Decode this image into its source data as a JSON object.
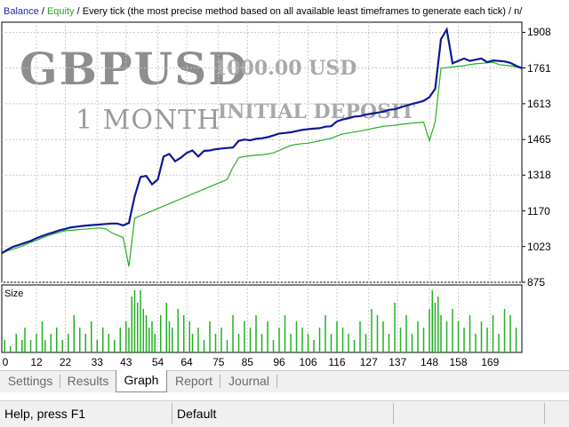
{
  "legend": {
    "balance": "Balance",
    "sep1": " / ",
    "equity": "Equity",
    "sep2": " / ",
    "description": "Every tick (the most precise method based on all available least timeframes to generate each tick)",
    "sep3": " / ",
    "trail": "n/"
  },
  "watermark": {
    "pair": "GBPUSD",
    "period": "1 MONTH",
    "amount": "1000.00 USD",
    "deposit": "INITIAL DEPOSIT"
  },
  "colors": {
    "balance": "#0a1a96",
    "equity": "#22b022",
    "volume": "#22b022",
    "grid": "#c8c8c8"
  },
  "chart_data": {
    "type": "line",
    "y_ticks": [
      "1908",
      "1761",
      "1613",
      "1465",
      "1318",
      "1170",
      "1023",
      "875"
    ],
    "x_ticks": [
      "0",
      "12",
      "22",
      "33",
      "43",
      "54",
      "64",
      "75",
      "85",
      "96",
      "106",
      "116",
      "127",
      "137",
      "148",
      "158",
      "169"
    ],
    "ylim": [
      875,
      1950
    ],
    "xlim": [
      0,
      180
    ],
    "grid": true,
    "series": [
      {
        "name": "Balance",
        "x": [
          0,
          2,
          4,
          6,
          8,
          10,
          12,
          14,
          16,
          18,
          20,
          22,
          24,
          26,
          28,
          30,
          32,
          34,
          36,
          38,
          40,
          42,
          44,
          46,
          48,
          50,
          52,
          54,
          56,
          58,
          60,
          62,
          64,
          66,
          68,
          70,
          72,
          74,
          76,
          78,
          80,
          82,
          84,
          86,
          88,
          90,
          92,
          94,
          96,
          98,
          100,
          102,
          104,
          106,
          108,
          110,
          112,
          114,
          116,
          118,
          120,
          122,
          124,
          126,
          128,
          130,
          132,
          134,
          136,
          138,
          140,
          142,
          144,
          146,
          148,
          150,
          152,
          154,
          156,
          158,
          160,
          162,
          164,
          166,
          168,
          170,
          172,
          174,
          176,
          178,
          180
        ],
        "values": [
          995,
          1010,
          1022,
          1030,
          1038,
          1046,
          1057,
          1066,
          1075,
          1082,
          1090,
          1096,
          1102,
          1105,
          1108,
          1110,
          1112,
          1114,
          1116,
          1118,
          1118,
          1110,
          1120,
          1230,
          1310,
          1315,
          1280,
          1300,
          1395,
          1405,
          1375,
          1390,
          1410,
          1420,
          1395,
          1418,
          1420,
          1425,
          1428,
          1430,
          1432,
          1460,
          1465,
          1462,
          1468,
          1470,
          1475,
          1482,
          1490,
          1492,
          1495,
          1500,
          1505,
          1508,
          1510,
          1512,
          1518,
          1520,
          1540,
          1548,
          1553,
          1560,
          1562,
          1568,
          1572,
          1576,
          1580,
          1588,
          1590,
          1598,
          1605,
          1612,
          1618,
          1625,
          1640,
          1675,
          1880,
          1920,
          1780,
          1790,
          1800,
          1790,
          1795,
          1800,
          1785,
          1792,
          1790,
          1788,
          1782,
          1770,
          1760
        ]
      },
      {
        "name": "Equity",
        "x": [
          0,
          2,
          4,
          6,
          8,
          10,
          12,
          14,
          16,
          18,
          20,
          22,
          24,
          26,
          28,
          30,
          32,
          34,
          36,
          38,
          40,
          42,
          44,
          46,
          48,
          50,
          52,
          54,
          56,
          58,
          60,
          62,
          64,
          66,
          68,
          70,
          72,
          74,
          76,
          78,
          80,
          82,
          84,
          86,
          88,
          90,
          92,
          94,
          96,
          98,
          100,
          102,
          104,
          106,
          108,
          110,
          112,
          114,
          116,
          118,
          120,
          122,
          124,
          126,
          128,
          130,
          132,
          134,
          136,
          138,
          140,
          142,
          144,
          146,
          148,
          150,
          152,
          154,
          156,
          158,
          160,
          162,
          164,
          166,
          168,
          170,
          172,
          174,
          176,
          178,
          180
        ],
        "values": [
          995,
          1005,
          1012,
          1020,
          1030,
          1040,
          1048,
          1058,
          1068,
          1075,
          1082,
          1088,
          1090,
          1092,
          1094,
          1096,
          1098,
          1100,
          1096,
          1080,
          1070,
          1060,
          940,
          1140,
          1150,
          1160,
          1170,
          1180,
          1190,
          1200,
          1210,
          1220,
          1230,
          1240,
          1250,
          1260,
          1270,
          1280,
          1290,
          1300,
          1350,
          1390,
          1395,
          1398,
          1400,
          1402,
          1405,
          1410,
          1420,
          1430,
          1440,
          1445,
          1448,
          1450,
          1455,
          1460,
          1465,
          1470,
          1480,
          1488,
          1492,
          1496,
          1500,
          1505,
          1510,
          1515,
          1520,
          1522,
          1524,
          1528,
          1530,
          1533,
          1535,
          1537,
          1460,
          1538,
          1760,
          1762,
          1765,
          1768,
          1770,
          1775,
          1778,
          1780,
          1782,
          1785,
          1775,
          1772,
          1770,
          1765,
          1760
        ]
      },
      {
        "name": "Size",
        "x": [
          1,
          3,
          5,
          7,
          8,
          10,
          12,
          14,
          15,
          17,
          19,
          21,
          23,
          25,
          27,
          29,
          31,
          33,
          35,
          37,
          39,
          41,
          43,
          44,
          45,
          46,
          47,
          48,
          49,
          50,
          51,
          52,
          53,
          55,
          57,
          58,
          59,
          61,
          63,
          65,
          66,
          68,
          70,
          72,
          74,
          76,
          78,
          80,
          82,
          84,
          86,
          88,
          90,
          92,
          94,
          96,
          98,
          100,
          102,
          104,
          106,
          108,
          110,
          112,
          114,
          116,
          118,
          120,
          122,
          124,
          126,
          128,
          130,
          132,
          134,
          136,
          138,
          140,
          142,
          144,
          146,
          148,
          149,
          150,
          151,
          152,
          154,
          156,
          158,
          160,
          162,
          164,
          166,
          168,
          170,
          172,
          174,
          176,
          178
        ],
        "values": [
          2,
          1,
          3,
          2,
          4,
          2,
          3,
          5,
          2,
          3,
          4,
          2,
          3,
          6,
          4,
          3,
          5,
          2,
          4,
          3,
          2,
          4,
          5,
          4,
          9,
          10,
          8,
          10,
          7,
          6,
          4,
          5,
          3,
          6,
          8,
          5,
          4,
          7,
          6,
          5,
          3,
          4,
          2,
          5,
          3,
          4,
          2,
          6,
          3,
          5,
          4,
          6,
          3,
          5,
          2,
          4,
          6,
          3,
          5,
          4,
          3,
          2,
          4,
          6,
          3,
          5,
          4,
          3,
          2,
          5,
          3,
          7,
          6,
          5,
          3,
          8,
          4,
          6,
          3,
          5,
          4,
          7,
          10,
          8,
          9,
          6,
          5,
          7,
          5,
          4,
          6,
          3,
          5,
          4,
          6,
          3,
          7,
          6,
          4
        ]
      }
    ]
  },
  "volume_label": "Size",
  "tabs": [
    {
      "label": "Settings",
      "active": false
    },
    {
      "label": "Results",
      "active": false
    },
    {
      "label": "Graph",
      "active": true
    },
    {
      "label": "Report",
      "active": false
    },
    {
      "label": "Journal",
      "active": false
    }
  ],
  "status": {
    "help": "Help, press F1",
    "profile": "Default"
  }
}
